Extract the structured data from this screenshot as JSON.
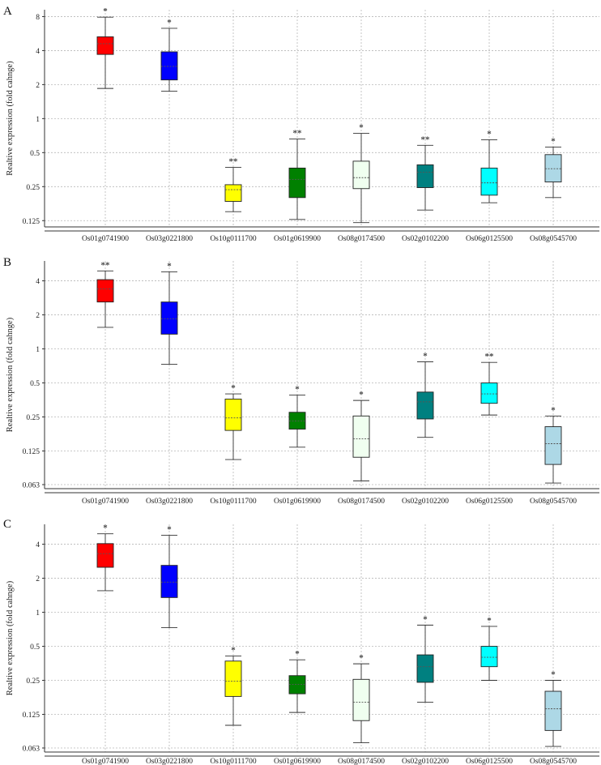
{
  "figure": {
    "y_axis_label": "Realtive expression (fold cahnge)",
    "categories": [
      "Os01g0741900",
      "Os03g0221800",
      "Os10g0111700",
      "Os01g0619900",
      "Os08g0174500",
      "Os02g0102200",
      "Os06g0125500",
      "Os08g0545700"
    ],
    "box_colors": [
      "#ff0000",
      "#0000ff",
      "#ffff00",
      "#008000",
      "#f0fff0",
      "#008080",
      "#00ffff",
      "#add8e6"
    ]
  },
  "chart_data": [
    {
      "type": "box",
      "panel_label": "A",
      "y_scale": "log2",
      "ylim": [
        0.11,
        9.2
      ],
      "y_ticks": [
        8,
        4,
        2,
        1,
        0.5,
        0.25,
        0.125
      ],
      "y_tick_labels": [
        "8",
        "4",
        "2",
        "1",
        "0.5",
        "0.25",
        "0.125"
      ],
      "boxes": [
        {
          "category": "Os01g0741900",
          "whisker_low": 1.85,
          "q1": 3.7,
          "median": 4.6,
          "q3": 5.3,
          "whisker_high": 7.9,
          "sig": "*"
        },
        {
          "category": "Os03g0221800",
          "whisker_low": 1.75,
          "q1": 2.2,
          "median": 2.9,
          "q3": 3.9,
          "whisker_high": 6.3,
          "sig": "*"
        },
        {
          "category": "Os10g0111700",
          "whisker_low": 0.15,
          "q1": 0.185,
          "median": 0.235,
          "q3": 0.26,
          "whisker_high": 0.37,
          "sig": "**"
        },
        {
          "category": "Os01g0619900",
          "whisker_low": 0.128,
          "q1": 0.2,
          "median": 0.29,
          "q3": 0.365,
          "whisker_high": 0.66,
          "sig": "**"
        },
        {
          "category": "Os08g0174500",
          "whisker_low": 0.12,
          "q1": 0.24,
          "median": 0.3,
          "q3": 0.42,
          "whisker_high": 0.74,
          "sig": "*"
        },
        {
          "category": "Os02g0102200",
          "whisker_low": 0.155,
          "q1": 0.245,
          "median": 0.335,
          "q3": 0.39,
          "whisker_high": 0.58,
          "sig": "**"
        },
        {
          "category": "Os06g0125500",
          "whisker_low": 0.18,
          "q1": 0.21,
          "median": 0.27,
          "q3": 0.365,
          "whisker_high": 0.65,
          "sig": "*"
        },
        {
          "category": "Os08g0545700",
          "whisker_low": 0.2,
          "q1": 0.275,
          "median": 0.36,
          "q3": 0.48,
          "whisker_high": 0.56,
          "sig": "*"
        }
      ]
    },
    {
      "type": "box",
      "panel_label": "B",
      "y_scale": "log2",
      "ylim": [
        0.058,
        6.0
      ],
      "y_ticks": [
        4,
        2,
        1,
        0.5,
        0.25,
        0.125,
        0.063
      ],
      "y_tick_labels": [
        "4",
        "2",
        "1",
        "0.5",
        "0.25",
        "0.125",
        "0.063"
      ],
      "boxes": [
        {
          "category": "Os01g0741900",
          "whisker_low": 1.55,
          "q1": 2.6,
          "median": 3.4,
          "q3": 4.1,
          "whisker_high": 4.9,
          "sig": "**"
        },
        {
          "category": "Os03g0221800",
          "whisker_low": 0.73,
          "q1": 1.35,
          "median": 1.85,
          "q3": 2.6,
          "whisker_high": 4.8,
          "sig": "*"
        },
        {
          "category": "Os10g0111700",
          "whisker_low": 0.105,
          "q1": 0.19,
          "median": 0.245,
          "q3": 0.36,
          "whisker_high": 0.4,
          "sig": "*"
        },
        {
          "category": "Os01g0619900",
          "whisker_low": 0.135,
          "q1": 0.195,
          "median": 0.23,
          "q3": 0.275,
          "whisker_high": 0.39,
          "sig": "*"
        },
        {
          "category": "Os08g0174500",
          "whisker_low": 0.068,
          "q1": 0.11,
          "median": 0.16,
          "q3": 0.255,
          "whisker_high": 0.35,
          "sig": "*"
        },
        {
          "category": "Os02g0102200",
          "whisker_low": 0.165,
          "q1": 0.24,
          "median": 0.34,
          "q3": 0.415,
          "whisker_high": 0.77,
          "sig": "*"
        },
        {
          "category": "Os06g0125500",
          "whisker_low": 0.26,
          "q1": 0.33,
          "median": 0.4,
          "q3": 0.5,
          "whisker_high": 0.76,
          "sig": "**"
        },
        {
          "category": "Os08g0545700",
          "whisker_low": 0.065,
          "q1": 0.095,
          "median": 0.145,
          "q3": 0.205,
          "whisker_high": 0.255,
          "sig": "*"
        }
      ]
    },
    {
      "type": "box",
      "panel_label": "C",
      "y_scale": "log2",
      "ylim": [
        0.058,
        6.0
      ],
      "y_ticks": [
        4,
        2,
        1,
        0.5,
        0.25,
        0.125,
        0.063
      ],
      "y_tick_labels": [
        "4",
        "2",
        "1",
        "0.5",
        "0.25",
        "0.125",
        "0.063"
      ],
      "boxes": [
        {
          "category": "Os01g0741900",
          "whisker_low": 1.55,
          "q1": 2.5,
          "median": 3.3,
          "q3": 4.05,
          "whisker_high": 4.95,
          "sig": "*"
        },
        {
          "category": "Os03g0221800",
          "whisker_low": 0.73,
          "q1": 1.35,
          "median": 1.85,
          "q3": 2.6,
          "whisker_high": 4.8,
          "sig": "*"
        },
        {
          "category": "Os10g0111700",
          "whisker_low": 0.1,
          "q1": 0.18,
          "median": 0.245,
          "q3": 0.37,
          "whisker_high": 0.41,
          "sig": "*"
        },
        {
          "category": "Os01g0619900",
          "whisker_low": 0.13,
          "q1": 0.19,
          "median": 0.23,
          "q3": 0.275,
          "whisker_high": 0.38,
          "sig": "*"
        },
        {
          "category": "Os08g0174500",
          "whisker_low": 0.07,
          "q1": 0.11,
          "median": 0.16,
          "q3": 0.255,
          "whisker_high": 0.35,
          "sig": "*"
        },
        {
          "category": "Os02g0102200",
          "whisker_low": 0.16,
          "q1": 0.24,
          "median": 0.33,
          "q3": 0.42,
          "whisker_high": 0.77,
          "sig": "*"
        },
        {
          "category": "Os06g0125500",
          "whisker_low": 0.25,
          "q1": 0.33,
          "median": 0.4,
          "q3": 0.5,
          "whisker_high": 0.75,
          "sig": "*"
        },
        {
          "category": "Os08g0545700",
          "whisker_low": 0.065,
          "q1": 0.09,
          "median": 0.14,
          "q3": 0.2,
          "whisker_high": 0.25,
          "sig": "*"
        }
      ]
    }
  ]
}
